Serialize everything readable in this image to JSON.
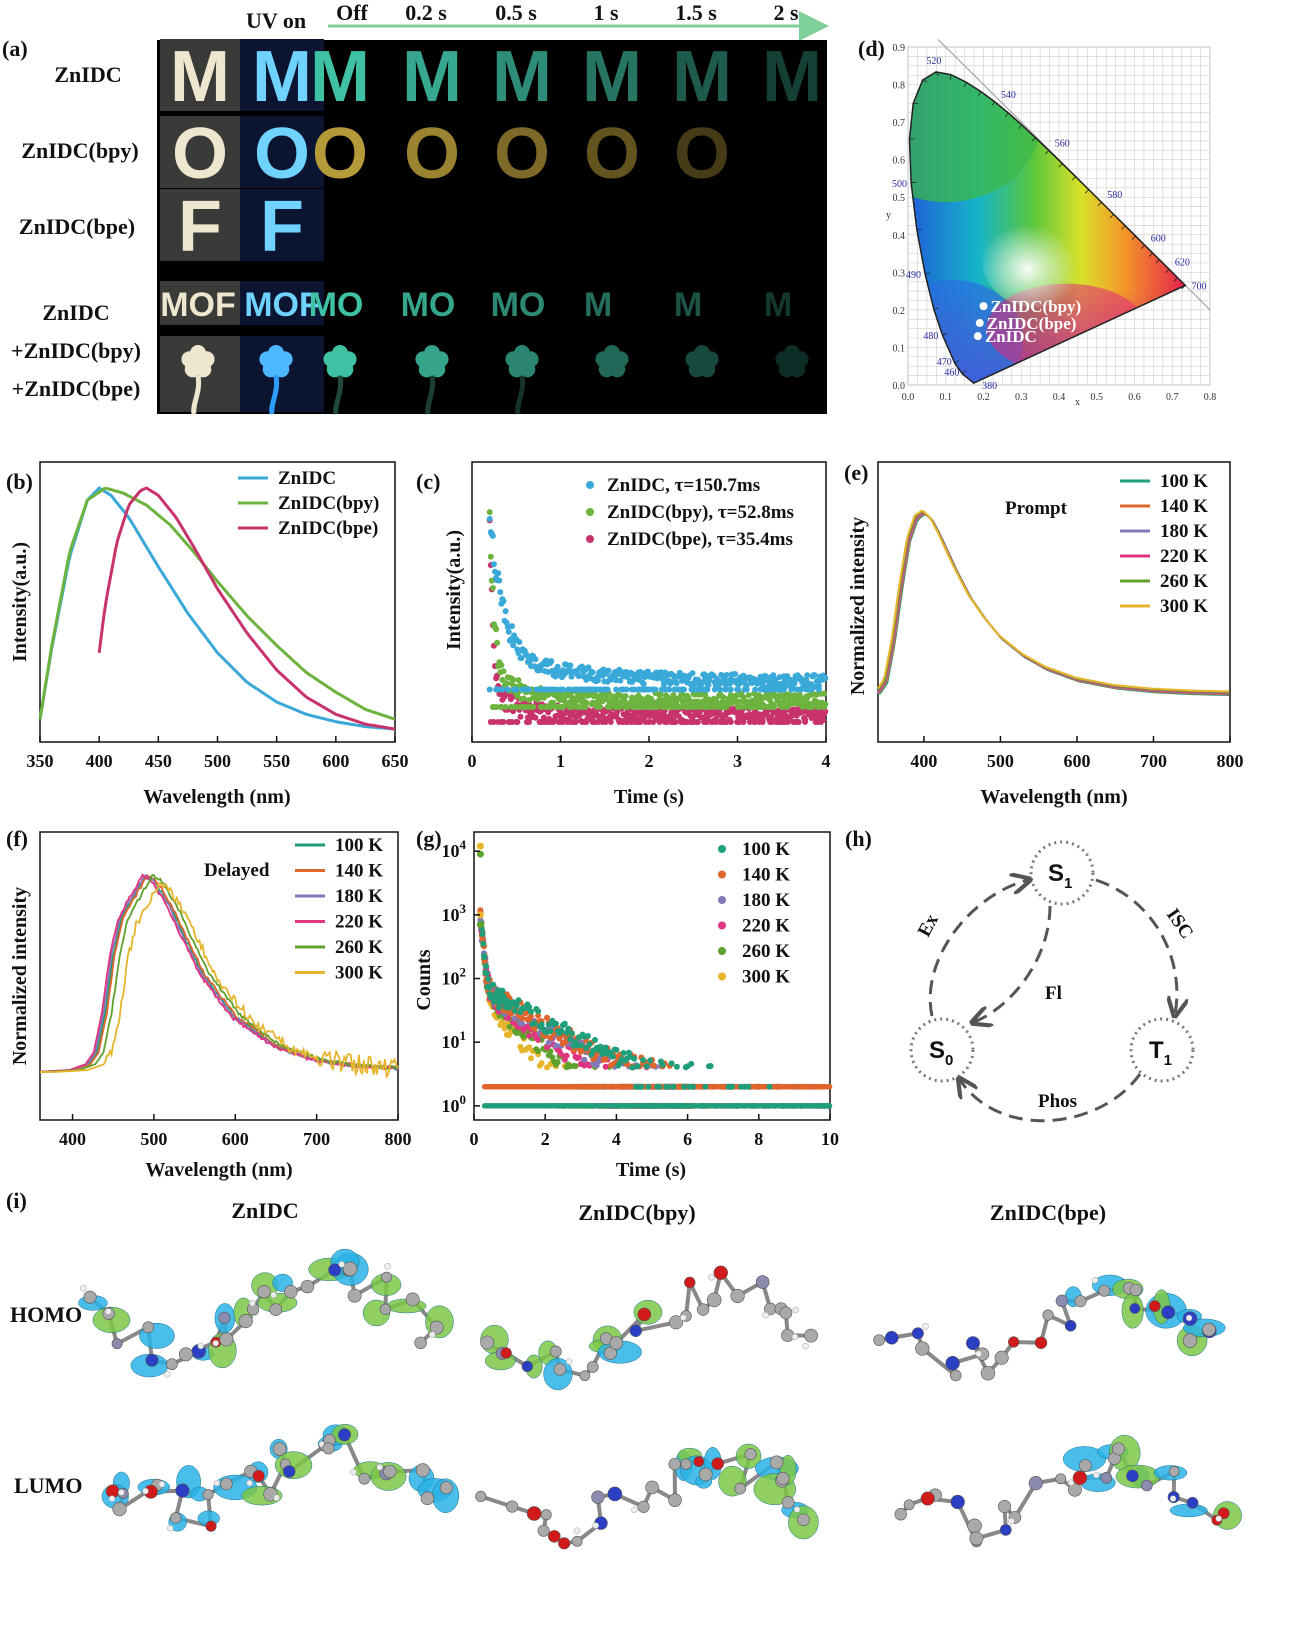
{
  "panel_a": {
    "label": "(a)",
    "header_uv_on": "UV on",
    "times": [
      "Off",
      "0.2 s",
      "0.5 s",
      "1 s",
      "1.5 s",
      "2 s"
    ],
    "rows": [
      {
        "name": "ZnIDC",
        "letter": "M",
        "color": "#3fc1a4",
        "persist": 6
      },
      {
        "name": "ZnIDC(bpy)",
        "letter": "O",
        "color": "#b59a3a",
        "persist": 5
      },
      {
        "name": "ZnIDC(bpe)",
        "letter": "F",
        "color": "#000000",
        "persist": 0
      }
    ],
    "mixed_rows": [
      "ZnIDC",
      "+ZnIDC(bpy)",
      "+ZnIDC(bpe)"
    ],
    "mix_word_daylight": "MOF",
    "mix_word_uv": "MOF",
    "mix_word_off": [
      "MO",
      "MO",
      "MO",
      "M",
      "M",
      "M"
    ]
  },
  "panel_b": {
    "label": "(b)",
    "chart_data": {
      "type": "line",
      "xlabel": "Wavelength (nm)",
      "ylabel": "Intensity(a.u.)",
      "xlim": [
        350,
        650
      ],
      "xticks": [
        350,
        400,
        450,
        500,
        550,
        600,
        650
      ],
      "series": [
        {
          "name": "ZnIDC",
          "color": "#3aa8d8",
          "x": [
            350,
            360,
            375,
            390,
            400,
            410,
            425,
            450,
            475,
            500,
            525,
            550,
            575,
            600,
            625,
            650
          ],
          "y": [
            0.06,
            0.35,
            0.72,
            0.95,
            1.0,
            0.97,
            0.88,
            0.68,
            0.49,
            0.33,
            0.21,
            0.13,
            0.08,
            0.05,
            0.03,
            0.02
          ]
        },
        {
          "name": "ZnIDC(bpy)",
          "color": "#6db33f",
          "x": [
            350,
            360,
            375,
            390,
            405,
            420,
            440,
            460,
            480,
            500,
            525,
            550,
            575,
            600,
            625,
            650
          ],
          "y": [
            0.06,
            0.36,
            0.74,
            0.95,
            1.0,
            0.98,
            0.93,
            0.85,
            0.74,
            0.62,
            0.48,
            0.36,
            0.25,
            0.17,
            0.1,
            0.06
          ]
        },
        {
          "name": "ZnIDC(bpe)",
          "color": "#c8336b",
          "x": [
            400,
            405,
            415,
            425,
            435,
            440,
            450,
            465,
            480,
            500,
            525,
            550,
            575,
            600,
            625,
            650
          ],
          "y": [
            0.33,
            0.52,
            0.78,
            0.93,
            0.99,
            1.0,
            0.97,
            0.88,
            0.76,
            0.59,
            0.41,
            0.26,
            0.15,
            0.08,
            0.04,
            0.02
          ]
        }
      ]
    }
  },
  "panel_c": {
    "label": "(c)",
    "chart_data": {
      "type": "scatter",
      "xlabel": "Time (s)",
      "ylabel": "Intensity(a.u.)",
      "xlim": [
        0,
        4
      ],
      "xticks": [
        0,
        1,
        2,
        3,
        4
      ],
      "series": [
        {
          "name": "ZnIDC, τ=150.7ms",
          "color": "#38a9d9",
          "tau": 0.1507,
          "amp": 0.78,
          "base": 0.2
        },
        {
          "name": "ZnIDC(bpy),   τ=52.8ms",
          "color": "#6db33f",
          "tau": 0.0528,
          "amp": 0.82,
          "base": 0.13
        },
        {
          "name": "ZnIDC(bpe),   τ=35.4ms",
          "color": "#c8336b",
          "tau": 0.0354,
          "amp": 0.95,
          "base": 0.07
        }
      ]
    }
  },
  "panel_d": {
    "label": "(d)",
    "chart_data": {
      "type": "scatter",
      "xlabel": "x",
      "ylabel": "y",
      "xlim": [
        0,
        0.8
      ],
      "ylim": [
        0,
        0.9
      ],
      "xticks": [
        "0.0",
        "0.1",
        "0.2",
        "0.3",
        "0.4",
        "0.5",
        "0.6",
        "0.7",
        "0.8"
      ],
      "yticks": [
        "0.0",
        "0.1",
        "0.2",
        "0.3",
        "0.4",
        "0.5",
        "0.6",
        "0.7",
        "0.8",
        "0.9"
      ],
      "wavelength_labels": [
        {
          "t": "380",
          "x": 0.175,
          "y": 0.005
        },
        {
          "t": "460",
          "x": 0.144,
          "y": 0.03
        },
        {
          "t": "470",
          "x": 0.124,
          "y": 0.058
        },
        {
          "t": "480",
          "x": 0.091,
          "y": 0.133
        },
        {
          "t": "490",
          "x": 0.045,
          "y": 0.295
        },
        {
          "t": "500",
          "x": 0.008,
          "y": 0.538
        },
        {
          "t": "520",
          "x": 0.074,
          "y": 0.834
        },
        {
          "t": "540",
          "x": 0.23,
          "y": 0.754
        },
        {
          "t": "560",
          "x": 0.373,
          "y": 0.624
        },
        {
          "t": "580",
          "x": 0.512,
          "y": 0.487
        },
        {
          "t": "600",
          "x": 0.627,
          "y": 0.372
        },
        {
          "t": "620",
          "x": 0.691,
          "y": 0.308
        },
        {
          "t": "700",
          "x": 0.735,
          "y": 0.265
        }
      ],
      "points": [
        {
          "name": "ZnIDC(bpy)",
          "x": 0.2,
          "y": 0.21
        },
        {
          "name": "ZnIDC(bpe)",
          "x": 0.19,
          "y": 0.165
        },
        {
          "name": "ZnIDC",
          "x": 0.185,
          "y": 0.13
        }
      ]
    }
  },
  "panel_e": {
    "label": "(e)",
    "annotation": "Prompt",
    "chart_data": {
      "type": "line",
      "xlabel": "Wavelength (nm)",
      "ylabel": "Normalized intensity",
      "xlim": [
        340,
        800
      ],
      "xticks": [
        400,
        500,
        600,
        700,
        800
      ],
      "series": [
        {
          "name": "100 K",
          "color": "#1f9e7a"
        },
        {
          "name": "140 K",
          "color": "#e0652a"
        },
        {
          "name": "180 K",
          "color": "#8479b8"
        },
        {
          "name": "220 K",
          "color": "#e0367f"
        },
        {
          "name": "260 K",
          "color": "#5fa12d"
        },
        {
          "name": "300 K",
          "color": "#e6b52c"
        }
      ],
      "curve_x": [
        340,
        350,
        360,
        370,
        380,
        390,
        400,
        410,
        420,
        440,
        460,
        480,
        500,
        530,
        560,
        600,
        650,
        700,
        750,
        800
      ],
      "curve_y": [
        0.02,
        0.08,
        0.3,
        0.6,
        0.85,
        0.97,
        1.0,
        0.96,
        0.88,
        0.7,
        0.54,
        0.42,
        0.32,
        0.22,
        0.15,
        0.09,
        0.05,
        0.03,
        0.02,
        0.015
      ]
    }
  },
  "panel_f": {
    "label": "(f)",
    "annotation": "Delayed",
    "chart_data": {
      "type": "line",
      "xlabel": "Wavelength (nm)",
      "ylabel": "Normalized intensity",
      "xlim": [
        360,
        800
      ],
      "xticks": [
        400,
        500,
        600,
        700,
        800
      ],
      "series": [
        {
          "name": "100 K",
          "color": "#1f9e7a",
          "shift": 0
        },
        {
          "name": "140 K",
          "color": "#e0652a",
          "shift": 2
        },
        {
          "name": "180 K",
          "color": "#8479b8",
          "shift": -2
        },
        {
          "name": "220 K",
          "color": "#e0367f",
          "shift": -4
        },
        {
          "name": "260 K",
          "color": "#5fa12d",
          "shift": 8
        },
        {
          "name": "300 K",
          "color": "#e6b52c",
          "shift": 18
        }
      ],
      "curve_x": [
        360,
        400,
        420,
        430,
        440,
        450,
        460,
        470,
        480,
        490,
        500,
        520,
        540,
        560,
        600,
        650,
        700,
        750,
        800
      ],
      "curve_y": [
        0.0,
        0.01,
        0.04,
        0.1,
        0.3,
        0.6,
        0.78,
        0.86,
        0.93,
        1.0,
        0.98,
        0.85,
        0.67,
        0.5,
        0.28,
        0.13,
        0.06,
        0.03,
        0.02
      ]
    }
  },
  "panel_g": {
    "label": "(g)",
    "chart_data": {
      "type": "scatter",
      "xlabel": "Time (s)",
      "ylabel": "Counts",
      "xlim": [
        0,
        10
      ],
      "ylim_log": [
        0.6,
        20000
      ],
      "xticks": [
        0,
        2,
        4,
        6,
        8,
        10
      ],
      "yticks": [
        "10",
        "10",
        "10",
        "10",
        "10"
      ],
      "ytick_exponents": [
        "0",
        "1",
        "2",
        "3",
        "4"
      ],
      "series": [
        {
          "name": "100 K",
          "color": "#1f9e7a",
          "tau": 1.3
        },
        {
          "name": "140 K",
          "color": "#e0652a",
          "tau": 1.2
        },
        {
          "name": "180 K",
          "color": "#8479b8",
          "tau": 1.05
        },
        {
          "name": "220 K",
          "color": "#e0367f",
          "tau": 0.9
        },
        {
          "name": "260 K",
          "color": "#5fa12d",
          "tau": 0.7
        },
        {
          "name": "300 K",
          "color": "#e6b52c",
          "tau": 0.5
        }
      ]
    }
  },
  "panel_h": {
    "label": "(h)",
    "states": {
      "s1": "S",
      "s1_sub": "1",
      "s0": "S",
      "s0_sub": "0",
      "t1": "T",
      "t1_sub": "1"
    },
    "processes": {
      "ex": "Ex",
      "isc": "ISC",
      "fl": "Fl",
      "phos": "Phos"
    }
  },
  "panel_i": {
    "label": "(i)",
    "columns": [
      "ZnIDC",
      "ZnIDC(bpy)",
      "ZnIDC(bpe)"
    ],
    "rows": [
      "HOMO",
      "LUMO"
    ],
    "orbital_colors": {
      "pos": "#2ab3e6",
      "neg": "#7cc846"
    }
  }
}
